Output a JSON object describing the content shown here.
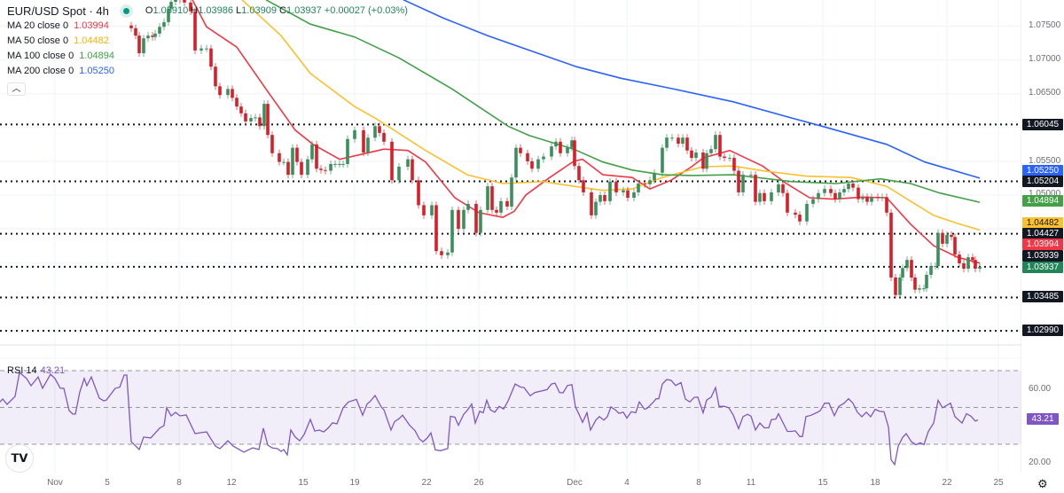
{
  "header": {
    "symbol": "EUR/USD Spot · 4h",
    "ohlc": {
      "o_label": "O",
      "o": "1.03910",
      "h_label": "H",
      "h": "1.03986",
      "l_label": "L",
      "l": "1.03909",
      "c_label": "C",
      "c": "1.03937",
      "change": "+0.00027 (+0.03%)"
    },
    "collapse_icon": "chevron-up-icon",
    "market_status_color": "#089981"
  },
  "indicators": [
    {
      "label": "MA 20 close 0",
      "value": "1.03994",
      "color": "#f23645"
    },
    {
      "label": "MA 50 close 0",
      "value": "1.04482",
      "color": "#fbc02d"
    },
    {
      "label": "MA 100 close 0",
      "value": "1.04894",
      "color": "#43a047"
    },
    {
      "label": "MA 200 close 0",
      "value": "1.05250",
      "color": "#2962ff"
    }
  ],
  "rsi_legend": {
    "label": "RSI 14",
    "value": "43.21",
    "color": "#7e57c2"
  },
  "price_axis": {
    "ticks": [
      "1.07500",
      "1.07000",
      "1.06500",
      "1.05500",
      "1.05000"
    ],
    "badges": [
      {
        "value": "1.06045",
        "color": "#131722"
      },
      {
        "value": "1.05250",
        "color": "#2962ff"
      },
      {
        "value": "1.05204",
        "color": "#131722"
      },
      {
        "value": "1.04894",
        "color": "#43a047"
      },
      {
        "value": "1.04482",
        "color": "#fbc02d"
      },
      {
        "value": "1.04427",
        "color": "#131722"
      },
      {
        "value": "1.03994",
        "color": "#f23645"
      },
      {
        "value": "1.03939",
        "color": "#131722"
      },
      {
        "value": "1.03937",
        "color": "#22855a"
      },
      {
        "value": "1.03485",
        "color": "#131722"
      },
      {
        "value": "1.02990",
        "color": "#131722"
      }
    ]
  },
  "rsi_axis": {
    "ticks": [
      "60.00",
      "20.00"
    ],
    "badge": "43.21"
  },
  "time_axis": {
    "labels": [
      "Nov",
      "5",
      "8",
      "12",
      "15",
      "19",
      "22",
      "26",
      "Dec",
      "4",
      "8",
      "11",
      "15",
      "18",
      "22",
      "25"
    ]
  },
  "settings_icon": "gear-icon",
  "logo_text": "TV",
  "chart_data": [
    {
      "type": "candlestick",
      "title": "EUR/USD Spot · 4h",
      "ylim": [
        1.027,
        1.0789
      ],
      "grid": true,
      "up_color": "#3a8f5c",
      "down_color": "#d81e28",
      "closes": [
        1.0747,
        1.0736,
        1.071,
        1.0732,
        1.0736,
        1.0734,
        1.0739,
        1.0749,
        1.0756,
        1.0776,
        1.0786,
        1.079,
        1.0789,
        1.0785,
        1.0772,
        1.0714,
        1.0717,
        1.0717,
        1.069,
        1.0661,
        1.0648,
        1.0657,
        1.0644,
        1.0631,
        1.0621,
        1.0609,
        1.0614,
        1.0615,
        1.0602,
        1.0635,
        1.0589,
        1.0562,
        1.0549,
        1.0549,
        1.053,
        1.057,
        1.0549,
        1.053,
        1.0553,
        1.0575,
        1.0539,
        1.0537,
        1.0536,
        1.0546,
        1.0546,
        1.0546,
        1.0546,
        1.0583,
        1.0596,
        1.0563,
        1.0585,
        1.0602,
        1.0592,
        1.0579,
        1.0522,
        1.0542,
        1.0553,
        1.0522,
        1.0485,
        1.047,
        1.0485,
        1.0417,
        1.0411,
        1.0415,
        1.0478,
        1.045,
        1.0478,
        1.0487,
        1.0444,
        1.0478,
        1.0513,
        1.0478,
        1.0474,
        1.0491,
        1.0483,
        1.0526,
        1.057,
        1.0562,
        1.055,
        1.0539,
        1.0553,
        1.0557,
        1.0572,
        1.0579,
        1.0562,
        1.057,
        1.0581,
        1.0543,
        1.0522,
        1.0504,
        1.047,
        1.049,
        1.05,
        1.0491,
        1.052,
        1.0504,
        1.0507,
        1.0496,
        1.0504,
        1.0517,
        1.0516,
        1.0522,
        1.0533,
        1.057,
        1.0585,
        1.0585,
        1.0576,
        1.0585,
        1.0566,
        1.0555,
        1.0563,
        1.0539,
        1.0562,
        1.0568,
        1.0589,
        1.0557,
        1.0555,
        1.0555,
        1.0536,
        1.0504,
        1.053,
        1.053,
        1.049,
        1.0503,
        1.0491,
        1.0504,
        1.0516,
        1.0503,
        1.0474,
        1.0471,
        1.0461,
        1.0487,
        1.0494,
        1.0503,
        1.0509,
        1.0503,
        1.0494,
        1.0504,
        1.0509,
        1.0517,
        1.0511,
        1.0494,
        1.0497,
        1.049,
        1.0497,
        1.0496,
        1.0497,
        1.0474,
        1.0378,
        1.0352,
        1.0378,
        1.0392,
        1.0404,
        1.0378,
        1.036,
        1.0362,
        1.0362,
        1.0382,
        1.0395,
        1.0395,
        1.0444,
        1.0428,
        1.0441,
        1.0438,
        1.0412,
        1.0399,
        1.0391,
        1.0408,
        1.0404,
        1.0391,
        1.03937
      ],
      "moving_averages": [
        {
          "name": "MA 20",
          "color": "#f23645",
          "values": [
            1.0789,
            1.0749,
            1.0719,
            1.0657,
            1.0596,
            1.0575,
            1.0553,
            1.0562,
            1.0568,
            1.0566,
            1.0549,
            1.0496,
            1.0474,
            1.0467,
            1.0476,
            1.05,
            1.0526,
            1.055,
            1.0553,
            1.053,
            1.0526,
            1.0509,
            1.0522,
            1.0542,
            1.0555,
            1.0566,
            1.0543,
            1.0517,
            1.0496,
            1.0494,
            1.0497,
            1.0496,
            1.0457,
            1.0425,
            1.0408,
            1.03994
          ]
        },
        {
          "name": "MA 50",
          "color": "#fbc02d",
          "values": [
            1.0789,
            1.0736,
            1.068,
            1.0631,
            1.0614,
            1.0566,
            1.053,
            1.0517,
            1.052,
            1.0513,
            1.0507,
            1.0509,
            1.0526,
            1.0542,
            1.0543,
            1.0536,
            1.0528,
            1.0526,
            1.0513,
            1.0491,
            1.047,
            1.0458,
            1.04482
          ]
        },
        {
          "name": "MA 100",
          "color": "#43a047",
          "values": [
            1.0789,
            1.0753,
            1.0734,
            1.0703,
            1.0657,
            1.0602,
            1.0588,
            1.0568,
            1.0549,
            1.0537,
            1.053,
            1.0529,
            1.053,
            1.052,
            1.0517,
            1.0524,
            1.0517,
            1.0503,
            1.04894
          ]
        },
        {
          "name": "MA 200",
          "color": "#2962ff",
          "values": [
            1.0789,
            1.0762,
            1.0736,
            1.0713,
            1.069,
            1.0673,
            1.0657,
            1.0638,
            1.0614,
            1.0602,
            1.0575,
            1.0549,
            1.0525
          ]
        }
      ],
      "horizontal_levels": [
        1.06045,
        1.05204,
        1.04427,
        1.03939,
        1.03485,
        1.0299
      ]
    },
    {
      "type": "line",
      "title": "RSI 14",
      "ylim": [
        12,
        78
      ],
      "bands": [
        70,
        50,
        30
      ],
      "color": "#7e57c2",
      "values": [
        53,
        54.6,
        51.7,
        56,
        69,
        65.7,
        61.8,
        66.6,
        60.4,
        68,
        65.7,
        60.4,
        60.4,
        48.3,
        46.4,
        46.4,
        58.4,
        65.7,
        61.8,
        66.6,
        55,
        53.6,
        54,
        60.4,
        61,
        67.6,
        67.6,
        31.4,
        27.1,
        33.9,
        33.4,
        38.7,
        40.1,
        49.8,
        45.4,
        47.3,
        45.4,
        45.9,
        35.8,
        36.3,
        36.7,
        29,
        27.6,
        31.9,
        29,
        25.7,
        28,
        27.1,
        38.7,
        29.5,
        28,
        27.6,
        26.1,
        27.1,
        24.2,
        37.7,
        33.9,
        31.9,
        35.3,
        43.5,
        37.2,
        37.7,
        36.7,
        38.7,
        41.6,
        41.1,
        49.8,
        53,
        54.4,
        45.8,
        51.9,
        53.5,
        56.5,
        50.3,
        48.7,
        37.7,
        42.3,
        43.9,
        45.8,
        40.3,
        37.4,
        32.9,
        31.3,
        33.4,
        36.1,
        26.9,
        26.5,
        27.7,
        45.2,
        44.7,
        40.3,
        46.3,
        48.4,
        51.9,
        41.5,
        47.9,
        47.1,
        53.9,
        48.7,
        47.4,
        50.6,
        49.2,
        53.5,
        62.7,
        61.1,
        60.8,
        56.3,
        58.1,
        59.7,
        62.7,
        63.2,
        58.1,
        57.9,
        61.9,
        62.4,
        50.3,
        46.3,
        41.9,
        47.1,
        37.7,
        43.1,
        45,
        43.1,
        45,
        50.3,
        48.7,
        46.8,
        47.4,
        44.2,
        47.7,
        47.1,
        53,
        49,
        49.6,
        53,
        54.7,
        54.7,
        62.7,
        65.2,
        64.7,
        61.9,
        63.5,
        54.6,
        53,
        55.5,
        55.6,
        47.1,
        54,
        55.6,
        60.8,
        50.6,
        50.6,
        49.8,
        45.8,
        38.5,
        45,
        46.3,
        45.3,
        37.7,
        41.5,
        38.9,
        38.9,
        43.4,
        43.7,
        46.6,
        41.8,
        37,
        37,
        37.3,
        34.2,
        34.2,
        45,
        45.8,
        47.4,
        48.2,
        52.3,
        52.3,
        45.5,
        50.6,
        52.3,
        54.7,
        52.3,
        47.4,
        45,
        47.4,
        45,
        49,
        47.9,
        47.7,
        39.4,
        21.6,
        18.9,
        28.9,
        33.7,
        35.8,
        31.3,
        29.7,
        30.8,
        29.7,
        37,
        41.5,
        53.9,
        49.8,
        52.3,
        45,
        41.5,
        46.6,
        45.3,
        42.6,
        43.21
      ]
    }
  ]
}
